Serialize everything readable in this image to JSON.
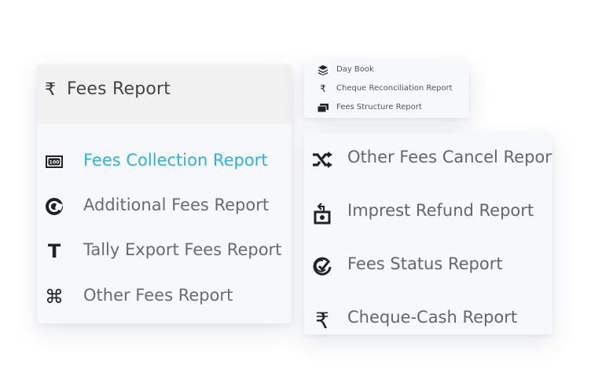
{
  "left_card": {
    "header": {
      "icon": "rupee-icon",
      "symbol": "₹",
      "title": "Fees Report"
    },
    "items": [
      {
        "label": "Fees Collection Report",
        "icon": "banknote-100-icon",
        "active": true,
        "active_color": "#2fb0e0"
      },
      {
        "label": "Additional Fees Report",
        "icon": "circular-arrow-icon"
      },
      {
        "label": "Tally Export Fees Report",
        "icon": "letter-t-icon",
        "glyph": "T"
      },
      {
        "label": "Other Fees Report",
        "icon": "command-key-icon",
        "glyph": "⌘"
      }
    ]
  },
  "top_card": {
    "items": [
      {
        "label": "Day Book",
        "icon": "layers-icon"
      },
      {
        "label": "Cheque Reconciliation Report",
        "icon": "rupee-icon",
        "glyph": "₹"
      },
      {
        "label": "Fees Structure Report",
        "icon": "cards-icon"
      }
    ]
  },
  "right_card": {
    "items": [
      {
        "label": "Other Fees Cancel Report",
        "icon": "shuffle-icon"
      },
      {
        "label": "Imprest Refund Report",
        "icon": "refund-box-icon"
      },
      {
        "label": "Fees Status Report",
        "icon": "check-circle-icon"
      },
      {
        "label": "Cheque-Cash Report",
        "icon": "rupee-icon",
        "glyph": "₹"
      }
    ]
  },
  "colors": {
    "active": "#2fb0e0",
    "text": "#666666",
    "card_bg": "#f7f8fc",
    "header_bg": "#f1f1f2"
  }
}
